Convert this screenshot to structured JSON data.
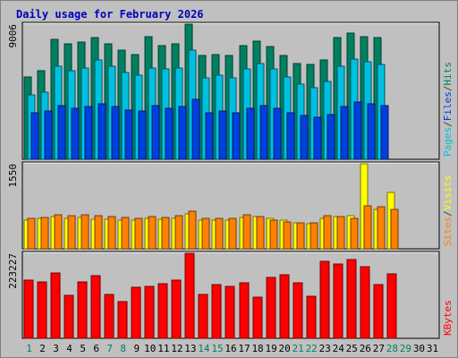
{
  "chart_data": {
    "type": "bar",
    "title": "Daily usage for February 2026",
    "categories": [
      "1",
      "2",
      "3",
      "4",
      "5",
      "6",
      "7",
      "8",
      "9",
      "10",
      "11",
      "12",
      "13",
      "14",
      "15",
      "16",
      "17",
      "18",
      "19",
      "20",
      "21",
      "22",
      "23",
      "24",
      "25",
      "26",
      "27",
      "28",
      "29",
      "30",
      "31"
    ],
    "weekend_days": [
      "1",
      "7",
      "8",
      "14",
      "15",
      "21",
      "22",
      "28",
      "29"
    ],
    "panels": [
      {
        "id": "hits",
        "max_label": "9006",
        "ymax": 9006,
        "axis_labels": [
          "Pages",
          "/",
          "Files",
          "/",
          "Hits"
        ],
        "axis_colors": [
          "#00c0e0",
          "#404040",
          "#0040e0",
          "#404040",
          "#008060"
        ],
        "series": [
          {
            "name": "Hits",
            "color": "#008060",
            "values": [
              5500,
              5900,
              8000,
              7700,
              7800,
              8100,
              7700,
              7300,
              7000,
              8200,
              7600,
              7700,
              9006,
              6900,
              7000,
              6900,
              7600,
              7900,
              7500,
              6900,
              6400,
              6300,
              6600,
              8100,
              8400,
              8200,
              8100,
              null,
              null,
              null,
              null
            ]
          },
          {
            "name": "Files",
            "color": "#00c0e0",
            "values": [
              4300,
              4500,
              6200,
              5900,
              6100,
              6600,
              6200,
              5800,
              5600,
              6100,
              6000,
              6100,
              7300,
              5400,
              5600,
              5400,
              6000,
              6400,
              6000,
              5500,
              5000,
              4800,
              5200,
              6200,
              6700,
              6500,
              6300,
              null,
              null,
              null,
              null
            ]
          },
          {
            "name": "Pages",
            "color": "#0040e0",
            "values": [
              3100,
              3200,
              3600,
              3400,
              3500,
              3700,
              3500,
              3300,
              3200,
              3600,
              3400,
              3500,
              4000,
              3100,
              3200,
              3100,
              3400,
              3600,
              3400,
              3100,
              2900,
              2800,
              3000,
              3500,
              3800,
              3700,
              3600,
              null,
              null,
              null,
              null
            ]
          }
        ]
      },
      {
        "id": "visits",
        "max_label": "1550",
        "ymax": 1550,
        "axis_labels": [
          "Sites",
          "/",
          "Visits"
        ],
        "axis_colors": [
          "#ff8000",
          "#404040",
          "#ffff00"
        ],
        "series": [
          {
            "name": "Visits",
            "color": "#ffff00",
            "values": [
              520,
              560,
              580,
              560,
              570,
              540,
              540,
              530,
              520,
              560,
              540,
              560,
              640,
              520,
              520,
              520,
              570,
              590,
              560,
              520,
              480,
              460,
              550,
              590,
              600,
              1550,
              720,
              1020,
              null,
              null,
              null
            ]
          },
          {
            "name": "Sites",
            "color": "#ff8000",
            "values": [
              550,
              570,
              620,
              600,
              620,
              610,
              580,
              570,
              560,
              590,
              570,
              600,
              690,
              550,
              560,
              560,
              620,
              580,
              520,
              490,
              480,
              470,
              600,
              580,
              560,
              780,
              760,
              710,
              null,
              null,
              null
            ]
          }
        ]
      },
      {
        "id": "kbytes",
        "max_label": "223227",
        "ymax": 223227,
        "axis_labels": [
          "KBytes"
        ],
        "axis_colors": [
          "#ff0000"
        ],
        "series": [
          {
            "name": "KBytes",
            "color": "#ff0000",
            "values": [
              153000,
              147000,
              171000,
              112000,
              147000,
              164000,
              115000,
              97000,
              133000,
              137000,
              143000,
              153000,
              223227,
              116000,
              140000,
              137000,
              146000,
              109000,
              159000,
              168000,
              146000,
              111000,
              201000,
              194000,
              206000,
              189000,
              142000,
              170000,
              null,
              null,
              null
            ]
          }
        ]
      }
    ]
  }
}
